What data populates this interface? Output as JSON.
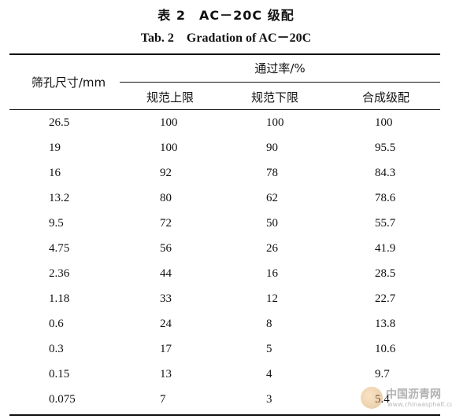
{
  "caption": {
    "title_cn": "表 2　AC－20C 级配",
    "title_en": "Tab. 2　Gradation of AC－20C"
  },
  "table": {
    "header_sieve": "筛孔尺寸/mm",
    "header_pass": "通过率/%",
    "columns": [
      "规范上限",
      "规范下限",
      "合成级配"
    ],
    "rows": [
      [
        "26.5",
        "100",
        "100",
        "100"
      ],
      [
        "19",
        "100",
        "90",
        "95.5"
      ],
      [
        "16",
        "92",
        "78",
        "84.3"
      ],
      [
        "13.2",
        "80",
        "62",
        "78.6"
      ],
      [
        "9.5",
        "72",
        "50",
        "55.7"
      ],
      [
        "4.75",
        "56",
        "26",
        "41.9"
      ],
      [
        "2.36",
        "44",
        "16",
        "28.5"
      ],
      [
        "1.18",
        "33",
        "12",
        "22.7"
      ],
      [
        "0.6",
        "24",
        "8",
        "13.8"
      ],
      [
        "0.3",
        "17",
        "5",
        "10.6"
      ],
      [
        "0.15",
        "13",
        "4",
        "9.7"
      ],
      [
        "0.075",
        "7",
        "3",
        "5.4"
      ]
    ]
  },
  "watermark": {
    "name": "中国沥青网",
    "url": "www.chinaasphalt.com"
  }
}
